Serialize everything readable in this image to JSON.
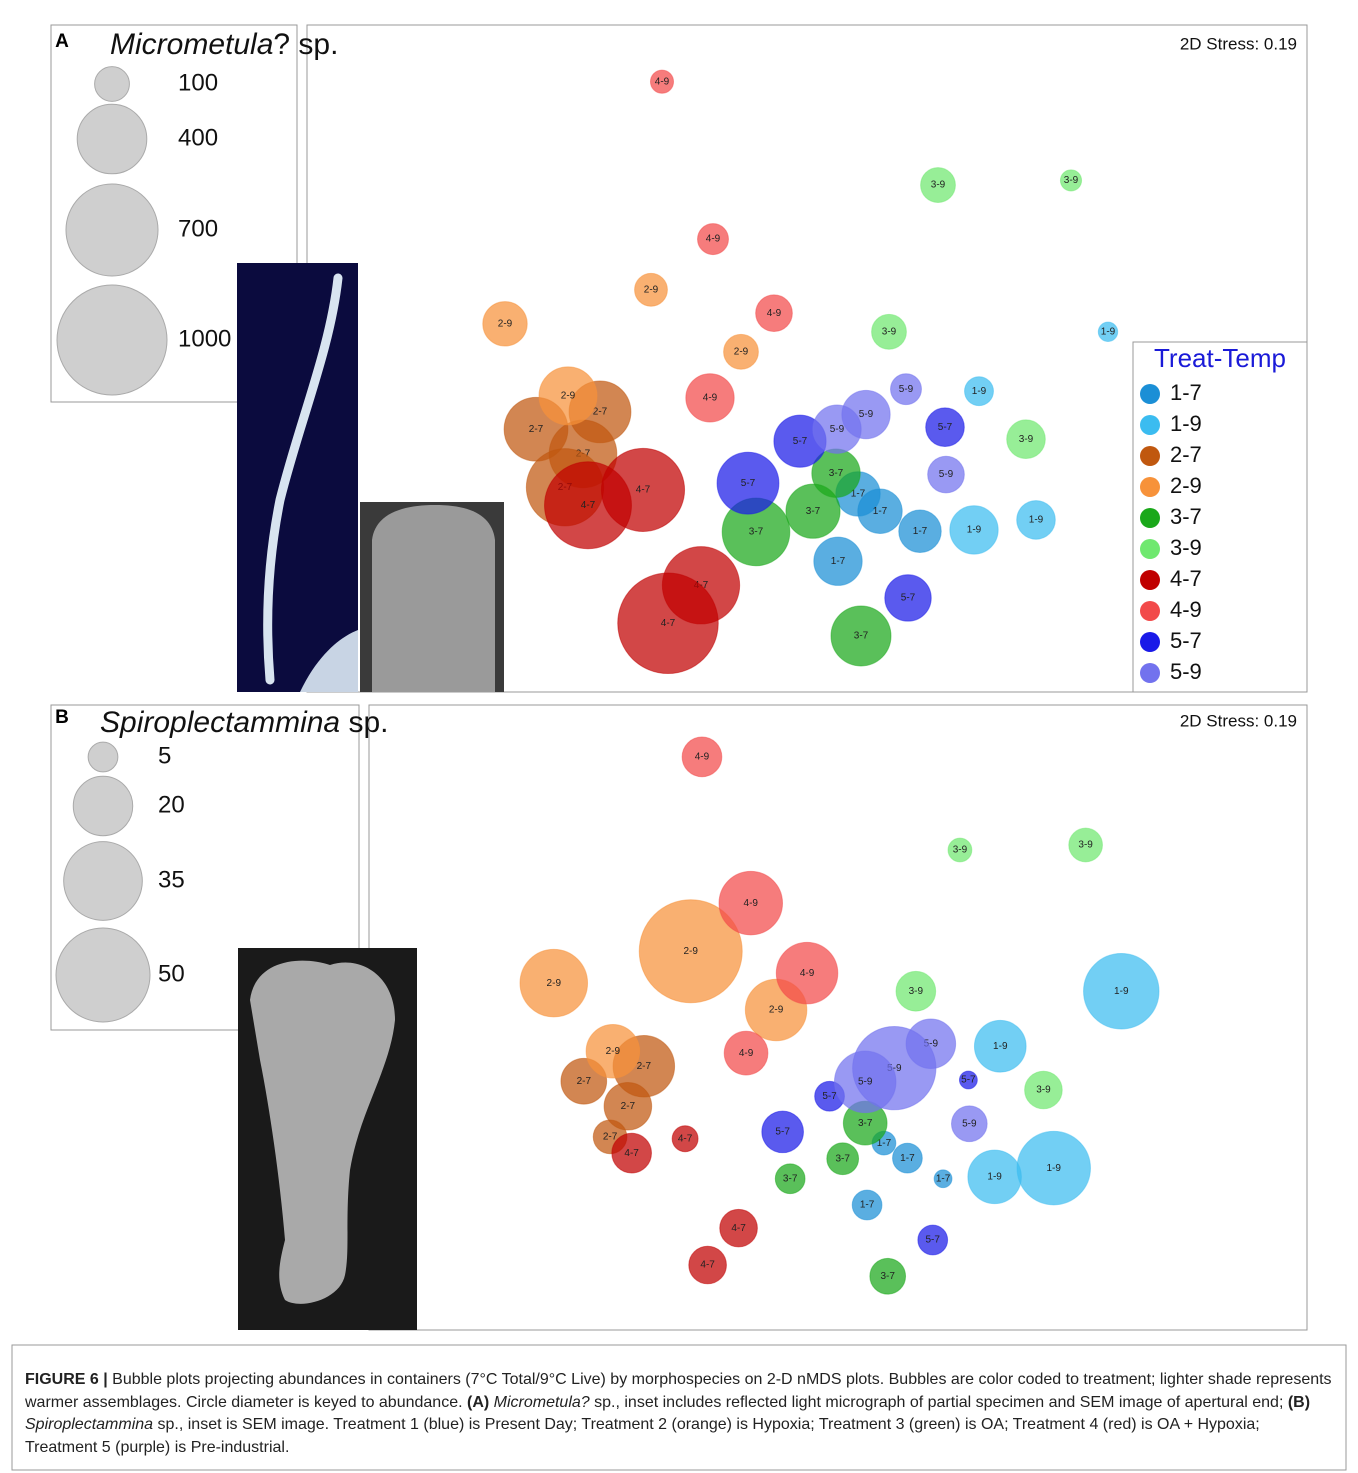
{
  "chart_data": [
    {
      "type": "bubble",
      "panel": "A",
      "title_italic": "Micrometula",
      "title_rest": "? sp.",
      "annotation": "2D Stress: 0.19",
      "xlim": [
        0,
        100
      ],
      "ylim": [
        0,
        100
      ],
      "size_legend": [
        100,
        400,
        700,
        1000
      ],
      "legend": {
        "title": "Treat-Temp",
        "position": "right"
      },
      "series": [
        {
          "name": "1-7",
          "color": "#1b8fd6",
          "x": [
            55.1,
            57.3,
            61.3,
            53.1
          ],
          "y": [
            29.7,
            27.1,
            24.1,
            19.6
          ],
          "sizes": [
            163,
            163,
            149,
            193
          ]
        },
        {
          "name": "1-9",
          "color": "#3bbcf0",
          "x": [
            80.1,
            67.2,
            72.9,
            66.7
          ],
          "y": [
            54.0,
            45.1,
            25.8,
            24.3
          ],
          "sizes": [
            31,
            69,
            123,
            193
          ]
        },
        {
          "name": "2-7",
          "color": "#c0580f",
          "x": [
            29.3,
            22.9,
            27.6,
            25.8
          ],
          "y": [
            42.0,
            39.4,
            35.7,
            30.7
          ],
          "sizes": [
            316,
            336,
            378,
            494
          ]
        },
        {
          "name": "2-9",
          "color": "#f7923a",
          "x": [
            34.4,
            19.8,
            43.4,
            26.1
          ],
          "y": [
            60.3,
            55.2,
            51.0,
            44.4
          ],
          "sizes": [
            89,
            163,
            100,
            278
          ]
        },
        {
          "name": "3-7",
          "color": "#1aa81a",
          "x": [
            52.9,
            50.6,
            44.9,
            55.4
          ],
          "y": [
            32.8,
            27.1,
            24.0,
            8.4
          ],
          "sizes": [
            193,
            242,
            378,
            297
          ]
        },
        {
          "name": "3-9",
          "color": "#6fe86f",
          "x": [
            63.1,
            76.4,
            58.2,
            71.9
          ],
          "y": [
            76.0,
            76.7,
            54.0,
            37.9
          ],
          "sizes": [
            100,
            37,
            100,
            123
          ]
        },
        {
          "name": "4-7",
          "color": "#c00000",
          "x": [
            33.6,
            28.1,
            39.4,
            36.1
          ],
          "y": [
            30.3,
            28.0,
            16.0,
            10.3
          ],
          "sizes": [
            571,
            625,
            494,
            835
          ]
        },
        {
          "name": "4-9",
          "color": "#f24a4a",
          "x": [
            35.5,
            40.6,
            46.7,
            40.3
          ],
          "y": [
            91.5,
            67.9,
            56.8,
            44.1
          ],
          "sizes": [
            44,
            79,
            111,
            193
          ]
        },
        {
          "name": "5-7",
          "color": "#1a1ae8",
          "x": [
            63.8,
            49.3,
            44.1,
            60.1
          ],
          "y": [
            39.7,
            37.6,
            31.3,
            14.1
          ],
          "sizes": [
            123,
            225,
            316,
            178
          ]
        },
        {
          "name": "5-9",
          "color": "#7272ee",
          "x": [
            59.9,
            55.9,
            53.0,
            63.9
          ],
          "y": [
            45.4,
            41.6,
            39.4,
            32.6
          ],
          "sizes": [
            79,
            193,
            193,
            111
          ]
        }
      ]
    },
    {
      "type": "bubble",
      "panel": "B",
      "title_italic": "Spiroplectammina",
      "title_rest": " sp.",
      "annotation": "2D Stress: 0.19",
      "xlim": [
        0,
        100
      ],
      "ylim": [
        0,
        100
      ],
      "size_legend": [
        5,
        20,
        35,
        50
      ],
      "series": [
        {
          "name": "1-7",
          "color": "#1b8fd6",
          "x": [
            54.9,
            57.4,
            61.2,
            53.1
          ],
          "y": [
            29.9,
            27.5,
            24.2,
            20.0
          ],
          "sizes": [
            3.2,
            5.0,
            1.8,
            5.0
          ]
        },
        {
          "name": "1-9",
          "color": "#3bbcf0",
          "x": [
            80.2,
            67.3,
            73.0,
            66.7
          ],
          "y": [
            54.2,
            45.4,
            25.9,
            24.5
          ],
          "sizes": [
            32.2,
            15.1,
            30.5,
            16.2
          ]
        },
        {
          "name": "2-7",
          "color": "#c0580f",
          "x": [
            29.3,
            22.9,
            27.6,
            25.7
          ],
          "y": [
            42.2,
            39.8,
            35.8,
            30.9
          ],
          "sizes": [
            21.4,
            11.8,
            12.8,
            6.4
          ]
        },
        {
          "name": "2-9",
          "color": "#f7923a",
          "x": [
            34.3,
            19.7,
            43.4,
            26.0
          ],
          "y": [
            60.6,
            55.5,
            51.2,
            44.6
          ],
          "sizes": [
            60,
            25.8,
            21.4,
            16.2
          ]
        },
        {
          "name": "3-7",
          "color": "#1aa81a",
          "x": [
            52.9,
            50.5,
            44.9,
            55.3
          ],
          "y": [
            33.1,
            27.4,
            24.2,
            8.6
          ],
          "sizes": [
            10.8,
            5.7,
            5.0,
            7.2
          ]
        },
        {
          "name": "3-9",
          "color": "#6fe86f",
          "x": [
            63.0,
            76.4,
            58.3,
            71.9
          ],
          "y": [
            76.8,
            77.6,
            54.2,
            38.4
          ],
          "sizes": [
            3.2,
            6.4,
            8.9,
            8.0
          ]
        },
        {
          "name": "4-7",
          "color": "#c00000",
          "x": [
            33.7,
            28.0,
            39.4,
            36.1
          ],
          "y": [
            30.6,
            28.3,
            16.3,
            10.4
          ],
          "sizes": [
            3.8,
            8.9,
            8.0,
            8.0
          ]
        },
        {
          "name": "4-9",
          "color": "#f24a4a",
          "x": [
            35.5,
            40.7,
            46.7,
            40.2
          ],
          "y": [
            91.7,
            68.3,
            57.1,
            44.3
          ],
          "sizes": [
            8.9,
            22.8,
            21.4,
            10.8
          ]
        },
        {
          "name": "5-7",
          "color": "#1a1ae8",
          "x": [
            63.9,
            49.1,
            44.1,
            60.1
          ],
          "y": [
            40.0,
            37.4,
            31.7,
            14.4
          ],
          "sizes": [
            1.8,
            5.0,
            9.8,
            5.0
          ]
        },
        {
          "name": "5-9",
          "color": "#7272ee",
          "x": [
            59.9,
            56.0,
            52.9,
            64.0
          ],
          "y": [
            45.8,
            41.9,
            39.7,
            33.0
          ],
          "sizes": [
            13.9,
            39.3,
            21.4,
            7.2
          ]
        }
      ]
    }
  ],
  "caption": [
    {
      "text": "FIGURE 6 |",
      "style": "bold"
    },
    {
      "text": " Bubble plots projecting abundances in containers (7°C Total/9°C Live) by morphospecies on 2-D nMDS plots. Bubbles are color coded to treatment; lighter shade represents warmer assemblages. Circle diameter is keyed to abundance. ",
      "style": "normal"
    },
    {
      "text": "(A)",
      "style": "bold"
    },
    {
      "text": " Micrometula?",
      "style": "italic"
    },
    {
      "text": " sp., inset includes reflected light micrograph of partial specimen and SEM image of apertural end; ",
      "style": "normal"
    },
    {
      "text": "(B)",
      "style": "bold"
    },
    {
      "text": " Spiroplectammina",
      "style": "italic"
    },
    {
      "text": " sp., inset is SEM image. Treatment 1 (blue) is Present Day; Treatment 2 (orange) is Hypoxia; Treatment 3 (green) is OA; Treatment 4 (red) is OA + Hypoxia; Treatment 5 (purple) is Pre-industrial.",
      "style": "normal"
    }
  ]
}
